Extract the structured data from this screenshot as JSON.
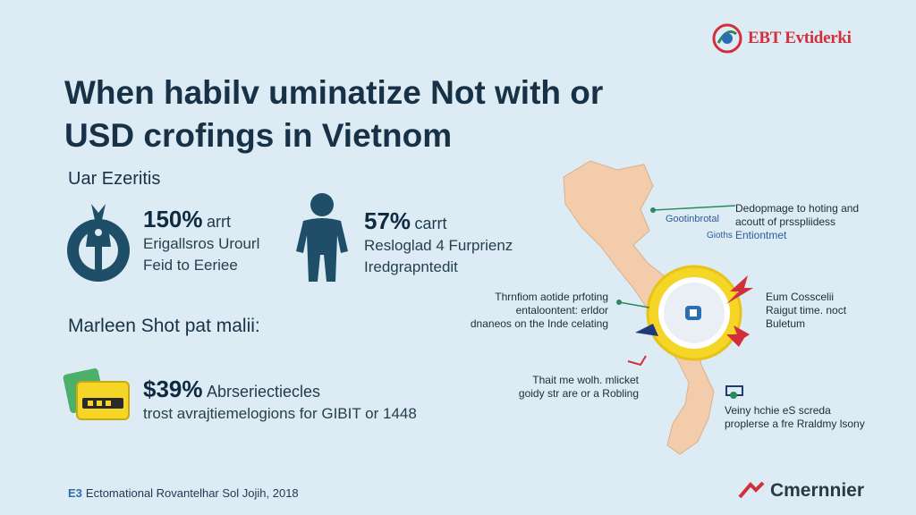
{
  "brand": {
    "name": "EBT Evtiderki",
    "footer_brand": "Cmernnier"
  },
  "title": {
    "line1": "When habilv uminatize Not with or",
    "line2": "USD crofings in Vietnom"
  },
  "section_user": {
    "heading": "Uar Ezeritis",
    "stats": [
      {
        "value": "150%",
        "unit": "arrt",
        "line1": "Erigallsros Urourl",
        "line2": "Feid to Eeriee"
      },
      {
        "value": "57%",
        "unit": "carrt",
        "line1": "Resloglad 4 Furprienz",
        "line2": "Iredgrapntedit"
      }
    ]
  },
  "section_market": {
    "heading": "Marleen Shot pat malii:",
    "stat": {
      "value": "$39%",
      "line1": "Abrseriectiecles",
      "line2": "trost avrajtiemelogions for GIBIT or 1448"
    }
  },
  "map_callouts": {
    "top_right": {
      "line1": "Dedopmage to hoting and",
      "line2": "acoutt of prsspliidess",
      "line3": "Entiontmet"
    },
    "top_left_side": "Gootinbrotal",
    "top_sub": "Gioths",
    "left_mid": {
      "line1": "Thrnfiom aotide prfoting",
      "line2": "entaloontent: erldor",
      "line3": "dnaneos on the Inde celating"
    },
    "right_mid": {
      "line1": "Eum Cosscelii",
      "line2": "Raigut time. noct",
      "line3": "Buletum"
    },
    "left_low": {
      "line1": "Thait me wolh. mlicket",
      "line2": "goidy str are or a Robling"
    },
    "right_low": {
      "line1": "Veiny hchie eS screda",
      "line2": "proplerse a fre Rraldmy lsony"
    }
  },
  "footer": {
    "mark": "E3",
    "text": "Ectomational Rovantelhar Sol Jojih, 2018"
  },
  "colors": {
    "background": "#dcebf4",
    "title": "#173247",
    "brand_red": "#d32f3a",
    "map_land": "#f2ccab",
    "highlight": "#f5d526"
  },
  "icons": [
    "globe-logo-icon",
    "money-bag-icon",
    "person-icon",
    "cash-stack-icon",
    "shield-badge-icon",
    "arrow-icon"
  ]
}
